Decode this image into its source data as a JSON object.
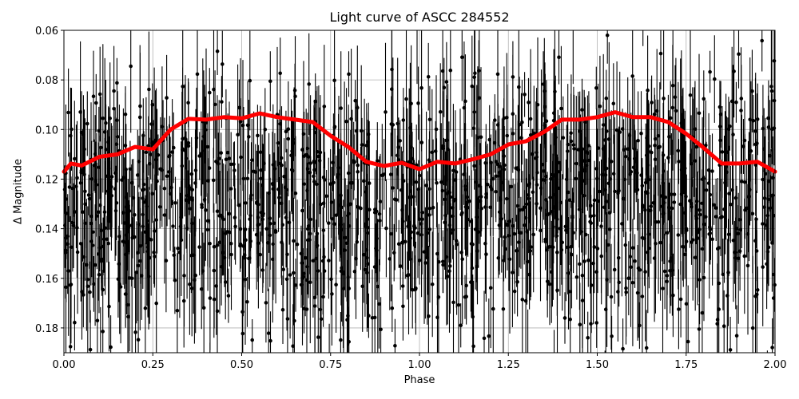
{
  "chart_data": {
    "type": "scatter",
    "title": "Light curve of ASCC 284552",
    "xlabel": "Phase",
    "ylabel": "Δ Magnitude",
    "xlim": [
      0.0,
      2.0
    ],
    "ylim": [
      0.19,
      0.06
    ],
    "y_inverted": true,
    "grid": true,
    "legend": null,
    "xticks": [
      "0.00",
      "0.25",
      "0.50",
      "0.75",
      "1.00",
      "1.25",
      "1.50",
      "1.75",
      "2.00"
    ],
    "yticks": [
      "0.06",
      "0.08",
      "0.10",
      "0.12",
      "0.14",
      "0.16",
      "0.18"
    ],
    "series": [
      {
        "name": "observations",
        "type": "errorbar",
        "color": "#000000",
        "description": "Dense phase-folded photometry with error bars spanning roughly 0.06–0.19 mag across phase 0–2",
        "approx_center": 0.13,
        "approx_scatter": 0.03
      },
      {
        "name": "binned mean",
        "type": "line",
        "color": "#ff0000",
        "x": [
          0.0,
          0.02,
          0.05,
          0.1,
          0.15,
          0.2,
          0.25,
          0.3,
          0.35,
          0.4,
          0.45,
          0.5,
          0.55,
          0.6,
          0.65,
          0.7,
          0.75,
          0.8,
          0.85,
          0.9,
          0.95,
          1.0,
          1.05,
          1.1,
          1.15,
          1.2,
          1.25,
          1.3,
          1.35,
          1.4,
          1.45,
          1.5,
          1.55,
          1.6,
          1.65,
          1.7,
          1.75,
          1.8,
          1.85,
          1.9,
          1.95,
          2.0
        ],
        "y": [
          0.117,
          0.1137,
          0.1145,
          0.111,
          0.11,
          0.107,
          0.108,
          0.1,
          0.0957,
          0.096,
          0.095,
          0.0955,
          0.0935,
          0.095,
          0.096,
          0.097,
          0.1025,
          0.107,
          0.113,
          0.1147,
          0.1134,
          0.116,
          0.113,
          0.1137,
          0.112,
          0.11,
          0.106,
          0.1047,
          0.101,
          0.096,
          0.096,
          0.095,
          0.093,
          0.095,
          0.095,
          0.097,
          0.1017,
          0.1075,
          0.1137,
          0.1137,
          0.113,
          0.117
        ]
      }
    ]
  }
}
